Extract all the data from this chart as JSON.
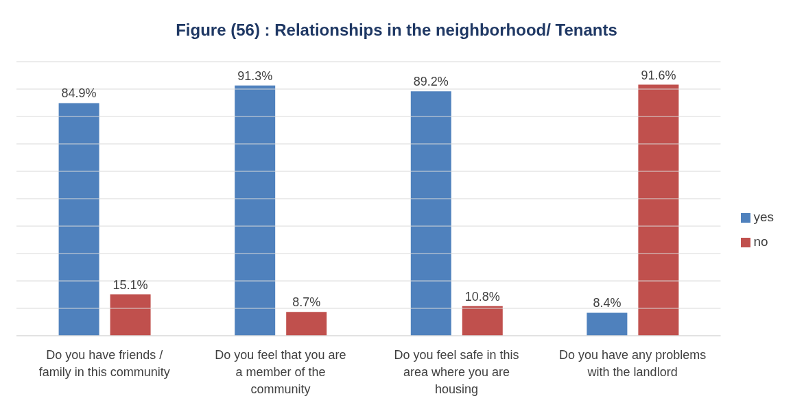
{
  "chart_data": {
    "type": "bar",
    "title": "Figure (56) : Relationships in the neighborhood/ Tenants",
    "categories": [
      "Do you have friends / family in this community",
      "Do you feel that you are a member of the community",
      "Do you feel safe in this area where you are housing",
      "Do you have any problems with the landlord"
    ],
    "series": [
      {
        "name": "yes",
        "color": "#4f81bd",
        "values": [
          84.9,
          91.3,
          89.2,
          8.4
        ],
        "value_labels": [
          "84.9%",
          "91.3%",
          "89.2%",
          "8.4%"
        ]
      },
      {
        "name": "no",
        "color": "#c0504d",
        "values": [
          15.1,
          8.7,
          10.8,
          91.6
        ],
        "value_labels": [
          "15.1%",
          "8.7%",
          "10.8%",
          "91.6%"
        ]
      }
    ],
    "ylim": [
      0,
      100
    ],
    "yticks": [
      {
        "value": 0,
        "label": null
      },
      {
        "value": 10,
        "label": null
      },
      {
        "value": 20,
        "label": null
      },
      {
        "value": 30,
        "label": null
      },
      {
        "value": 40,
        "label": null
      },
      {
        "value": 50,
        "label": null
      },
      {
        "value": 60,
        "label": null
      },
      {
        "value": 70,
        "label": null
      },
      {
        "value": 80,
        "label": null
      },
      {
        "value": 90,
        "label": null
      },
      {
        "value": 100,
        "label": null
      }
    ],
    "tick_labels": "x",
    "grid": "y",
    "legend": "right"
  }
}
